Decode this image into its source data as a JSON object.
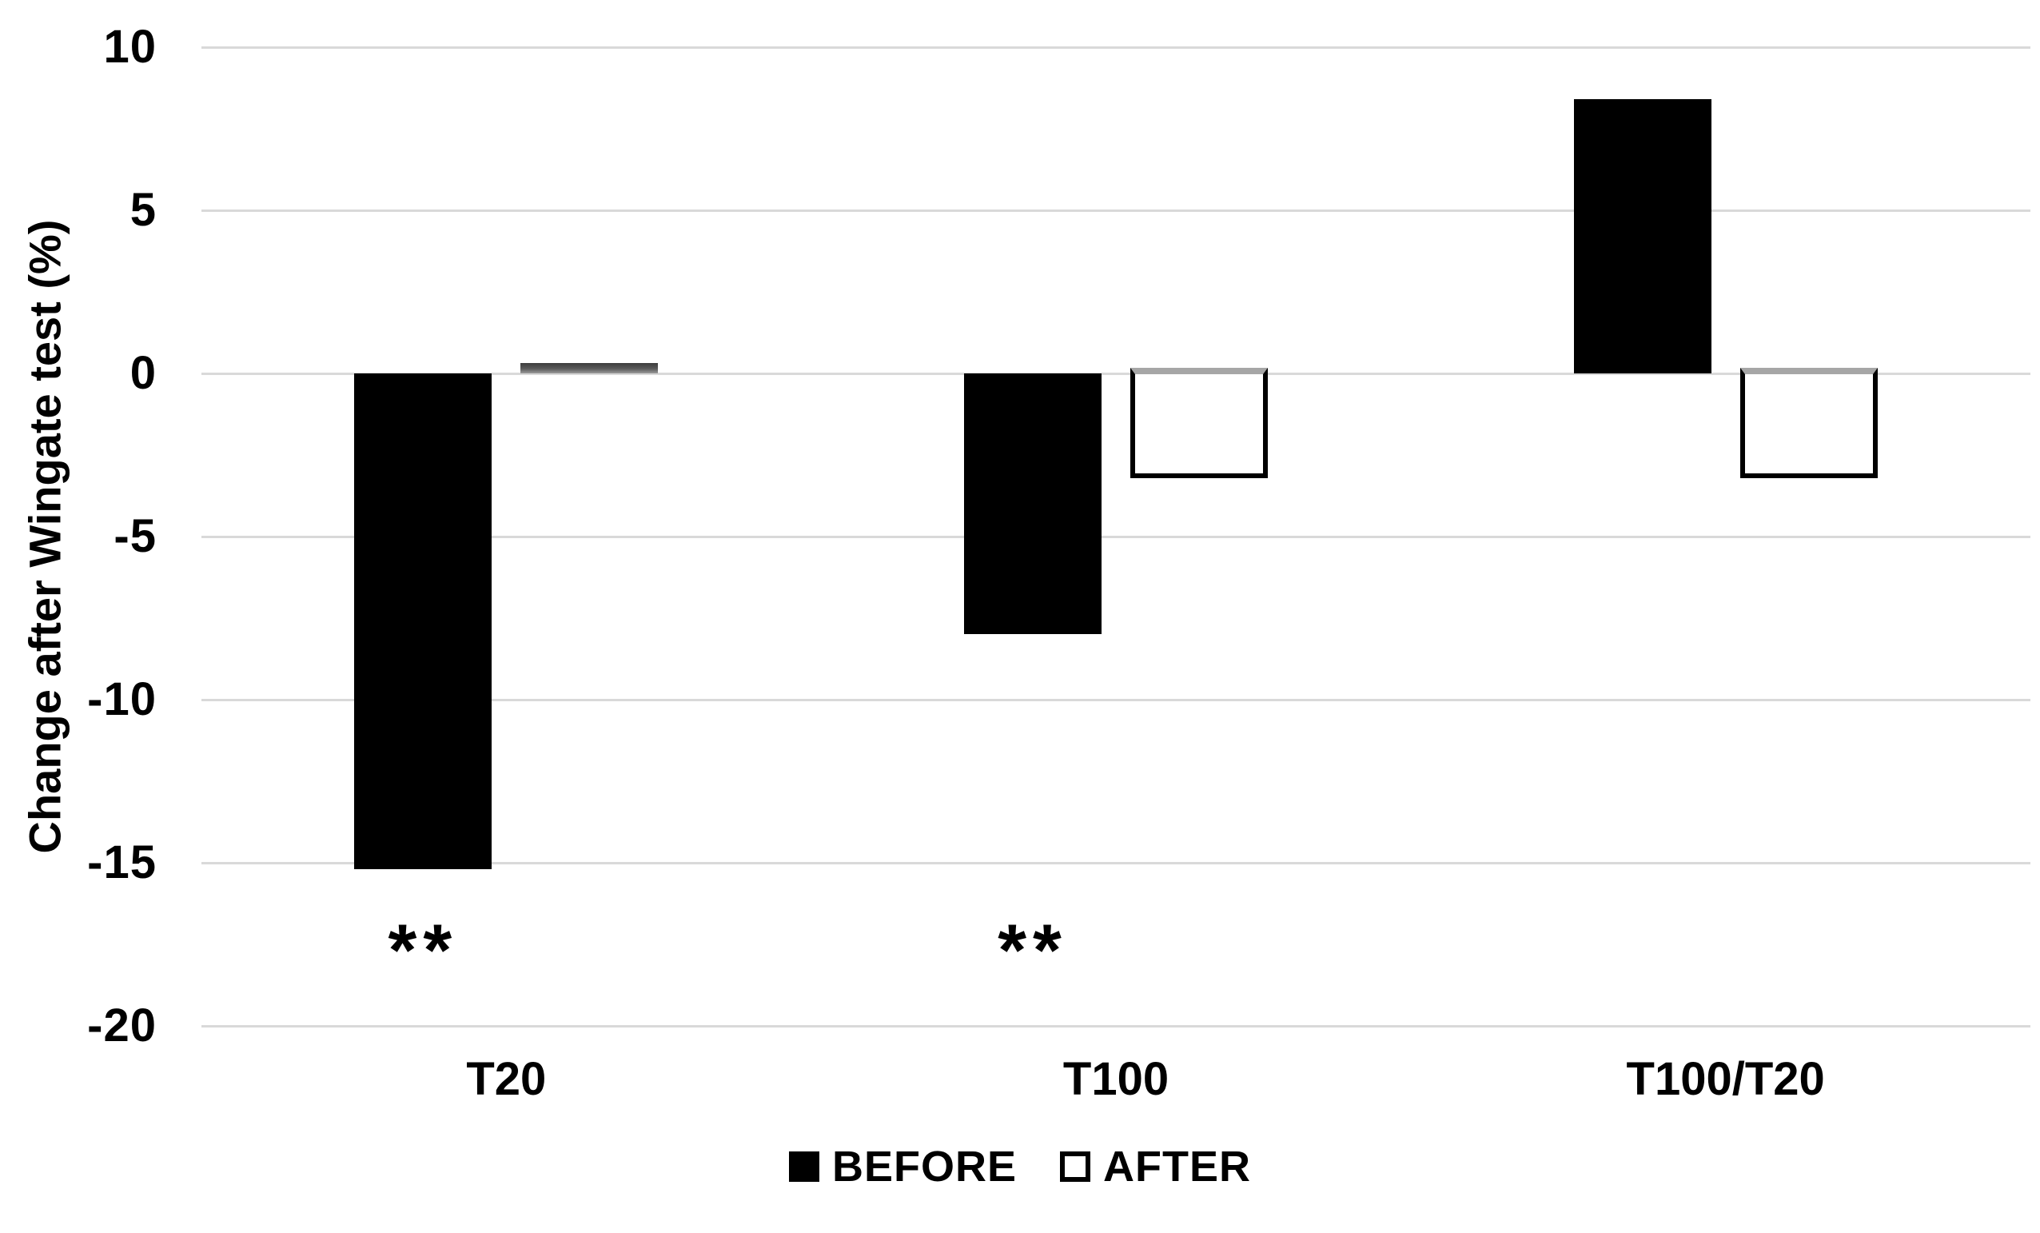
{
  "figure": {
    "background_color": "#ffffff",
    "text_color": "#000000"
  },
  "chart_data": {
    "type": "bar",
    "title": "",
    "xlabel": "",
    "ylabel": "Change after Wingate test (%)",
    "categories": [
      "T20",
      "T100",
      "T100/T20"
    ],
    "series": [
      {
        "name": "BEFORE",
        "style": "filled",
        "color": "#000000",
        "values": [
          -15.2,
          -8.0,
          8.4
        ]
      },
      {
        "name": "AFTER",
        "style": "outline",
        "fill": "#ffffff",
        "border_color": "#000000",
        "top_border_color": "#a6a6a6",
        "near_zero_color": "#5a5a5a",
        "values": [
          0.1,
          -3.2,
          -3.2
        ]
      }
    ],
    "yticks": [
      10,
      5,
      0,
      -5,
      -10,
      -15,
      -20
    ],
    "ylim": [
      -20,
      10
    ],
    "grid": "horizontal",
    "gridline_color": "#d9d9d9",
    "legend_position": "bottom",
    "annotations": [
      {
        "category": "T20",
        "series": "BEFORE",
        "text": "**"
      },
      {
        "category": "T100",
        "series": "BEFORE",
        "text": "**"
      }
    ]
  }
}
